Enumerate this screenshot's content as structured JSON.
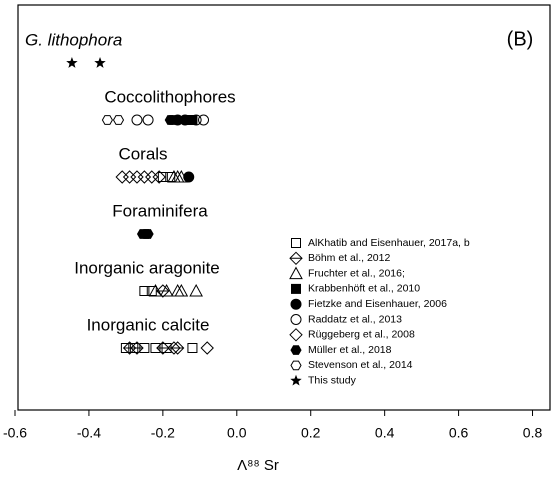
{
  "chart_data": {
    "type": "scatter",
    "panel_label": "(B)",
    "x_label": "Λ⁸⁸ Sr",
    "xlim": [
      -0.6,
      0.85
    ],
    "xticks": [
      -0.6,
      -0.4,
      -0.2,
      {
        "value": 0,
        "label": "0.0"
      },
      0.2,
      0.4,
      0.6,
      0.8
    ],
    "categories": [
      "G. lithophora",
      "Coccolithophores",
      "Corals",
      "Foraminifera",
      "Inorganic aragonite",
      "Inorganic calcite"
    ],
    "series": [
      {
        "name": "AlKhatib and Eisenhauer, 2017a, b",
        "marker": "square-open",
        "x": [
          [],
          [],
          [
            -0.2,
            -0.18
          ],
          [],
          [
            -0.25,
            -0.23
          ],
          [
            -0.3,
            -0.28,
            -0.25,
            -0.22,
            -0.19,
            -0.12
          ]
        ]
      },
      {
        "name": "Böhm et al., 2012",
        "marker": "diamond-line",
        "x": [
          [],
          [],
          [],
          [],
          [
            -0.2
          ],
          [
            -0.29,
            -0.27,
            -0.2,
            -0.17,
            -0.16
          ]
        ]
      },
      {
        "name": "Fruchter et al., 2016;",
        "marker": "triangle-open",
        "x": [
          [],
          [],
          [
            -0.17,
            -0.16,
            -0.15
          ],
          [],
          [
            -0.22,
            -0.19,
            -0.16,
            -0.15,
            -0.11
          ],
          []
        ]
      },
      {
        "name": "Krabbenhöft et al., 2010",
        "marker": "square-filled",
        "x": [
          [],
          [
            -0.13,
            -0.12
          ],
          [],
          [],
          [],
          []
        ]
      },
      {
        "name": "Fietzke and Eisenhauer, 2006",
        "marker": "circle-filled",
        "x": [
          [],
          [
            -0.16,
            -0.14
          ],
          [
            -0.13
          ],
          [],
          [],
          []
        ]
      },
      {
        "name": "Raddatz et al., 2013",
        "marker": "circle-open",
        "x": [
          [],
          [
            -0.27,
            -0.24,
            -0.11,
            -0.09
          ],
          [],
          [],
          [],
          []
        ]
      },
      {
        "name": "Rüggeberg et al., 2008",
        "marker": "diamond-open",
        "x": [
          [],
          [],
          [
            -0.31,
            -0.29,
            -0.27,
            -0.25,
            -0.23,
            -0.21
          ],
          [],
          [],
          [
            -0.08
          ]
        ]
      },
      {
        "name": "Müller et al., 2018",
        "marker": "hexagon-filled",
        "x": [
          [],
          [
            -0.18,
            -0.175
          ],
          [],
          [
            -0.255,
            -0.245,
            -0.24
          ],
          [],
          []
        ]
      },
      {
        "name": "Stevenson et al., 2014",
        "marker": "hexagon-open",
        "x": [
          [],
          [
            -0.35,
            -0.32
          ],
          [],
          [],
          [],
          []
        ]
      },
      {
        "name": "This study",
        "marker": "star",
        "x": [
          [
            -0.446,
            -0.37
          ],
          [],
          [],
          [],
          [],
          []
        ]
      }
    ]
  }
}
